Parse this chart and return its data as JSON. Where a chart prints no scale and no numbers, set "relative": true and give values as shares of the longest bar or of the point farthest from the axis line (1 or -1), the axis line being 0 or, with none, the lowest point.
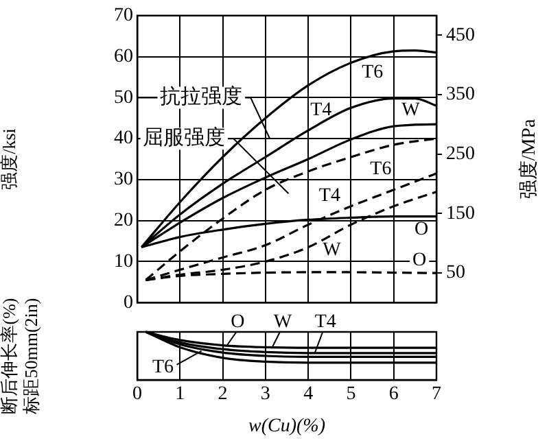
{
  "chart_data": [
    {
      "type": "line",
      "ylabel": "强度/ksi",
      "y2label": "强度/MPa",
      "xlim": [
        0,
        7
      ],
      "xticks": [
        0,
        1,
        2,
        3,
        4,
        5,
        6,
        7
      ],
      "ylim": [
        0,
        70
      ],
      "yticks": [
        0,
        10,
        20,
        30,
        40,
        50,
        60,
        70
      ],
      "y2lim": [
        0,
        483
      ],
      "y2ticks": [
        50,
        150,
        250,
        350,
        450
      ],
      "tick_labels": "y",
      "grid": true,
      "legend": false,
      "marker": "none",
      "series": [
        {
          "color": "#000000",
          "line_style": "solid",
          "x": [
            0.1,
            1,
            2,
            3,
            4,
            5,
            6,
            6.5,
            7
          ],
          "values": [
            13.5,
            24.5,
            35.5,
            45,
            53,
            58.5,
            61.3,
            61.5,
            61
          ]
        },
        {
          "color": "#000000",
          "line_style": "solid",
          "x": [
            0.1,
            1,
            2,
            3,
            4,
            5,
            6,
            6.5,
            7
          ],
          "values": [
            13.5,
            21.5,
            29,
            35.5,
            42,
            47.5,
            49.8,
            49.8,
            48
          ]
        },
        {
          "color": "#000000",
          "line_style": "solid",
          "x": [
            0.1,
            1,
            2,
            3,
            4,
            5,
            6,
            7
          ],
          "values": [
            13.5,
            19.5,
            25.5,
            30.5,
            35,
            39.8,
            43,
            43.5
          ]
        },
        {
          "color": "#000000",
          "line_style": "solid",
          "x": [
            0.1,
            1,
            2,
            3,
            4,
            5,
            6,
            7
          ],
          "values": [
            13.5,
            16,
            17.8,
            19.2,
            20.2,
            20.7,
            21,
            21
          ]
        },
        {
          "color": "#000000",
          "line_style": "dashed",
          "x": [
            0.2,
            1,
            2,
            3,
            4,
            5,
            6,
            7
          ],
          "values": [
            5.5,
            12.5,
            20.5,
            27.5,
            32,
            35.5,
            38.5,
            40
          ]
        },
        {
          "color": "#000000",
          "line_style": "dashed",
          "x": [
            0.2,
            1,
            2,
            3,
            4,
            5,
            6,
            7
          ],
          "values": [
            5.5,
            8,
            11,
            14,
            19,
            23.5,
            27.5,
            31.5
          ]
        },
        {
          "color": "#000000",
          "line_style": "dashed",
          "x": [
            0.2,
            1,
            2,
            3,
            4,
            5,
            6,
            7
          ],
          "values": [
            5.5,
            6.8,
            8,
            10,
            13.5,
            19,
            23.5,
            27
          ]
        },
        {
          "color": "#000000",
          "line_style": "dashed",
          "x": [
            0.2,
            1,
            2,
            3,
            4,
            5,
            6,
            7
          ],
          "values": [
            5.5,
            6.5,
            7,
            7.3,
            7.4,
            7.4,
            7.3,
            7.2
          ]
        }
      ],
      "annotations": [
        "抗拉强度",
        "屈服强度",
        "T6",
        "T4",
        "W",
        "T6",
        "T4",
        "O",
        "W",
        "O"
      ]
    },
    {
      "type": "line",
      "ylabel": "断后伸长率(%)\n标距50mm(2in)",
      "xlabel": "w(Cu)(%)",
      "xlim": [
        0,
        7
      ],
      "xticks": [
        0,
        1,
        2,
        3,
        4,
        5,
        6,
        7
      ],
      "relative": true,
      "tick_labels": "x",
      "grid": "x",
      "legend": false,
      "marker": "none",
      "series": [
        {
          "color": "#000000",
          "x": [
            0.2,
            1,
            2,
            3,
            4,
            5,
            6,
            7
          ],
          "values": [
            1,
            0.83,
            0.72,
            0.68,
            0.67,
            0.67,
            0.67,
            0.67
          ]
        },
        {
          "color": "#000000",
          "x": [
            0.2,
            1,
            2,
            3,
            4,
            5,
            6,
            7
          ],
          "values": [
            1,
            0.78,
            0.64,
            0.58,
            0.56,
            0.56,
            0.56,
            0.56
          ]
        },
        {
          "color": "#000000",
          "x": [
            0.2,
            1,
            2,
            3,
            4,
            5,
            6,
            7
          ],
          "values": [
            1,
            0.74,
            0.57,
            0.5,
            0.48,
            0.48,
            0.48,
            0.48
          ]
        },
        {
          "color": "#000000",
          "x": [
            0.2,
            1,
            2,
            3,
            4,
            5,
            6,
            7
          ],
          "values": [
            1,
            0.68,
            0.46,
            0.38,
            0.36,
            0.36,
            0.36,
            0.36
          ]
        }
      ],
      "annotations": [
        "O",
        "W",
        "T4",
        "T6"
      ]
    }
  ]
}
